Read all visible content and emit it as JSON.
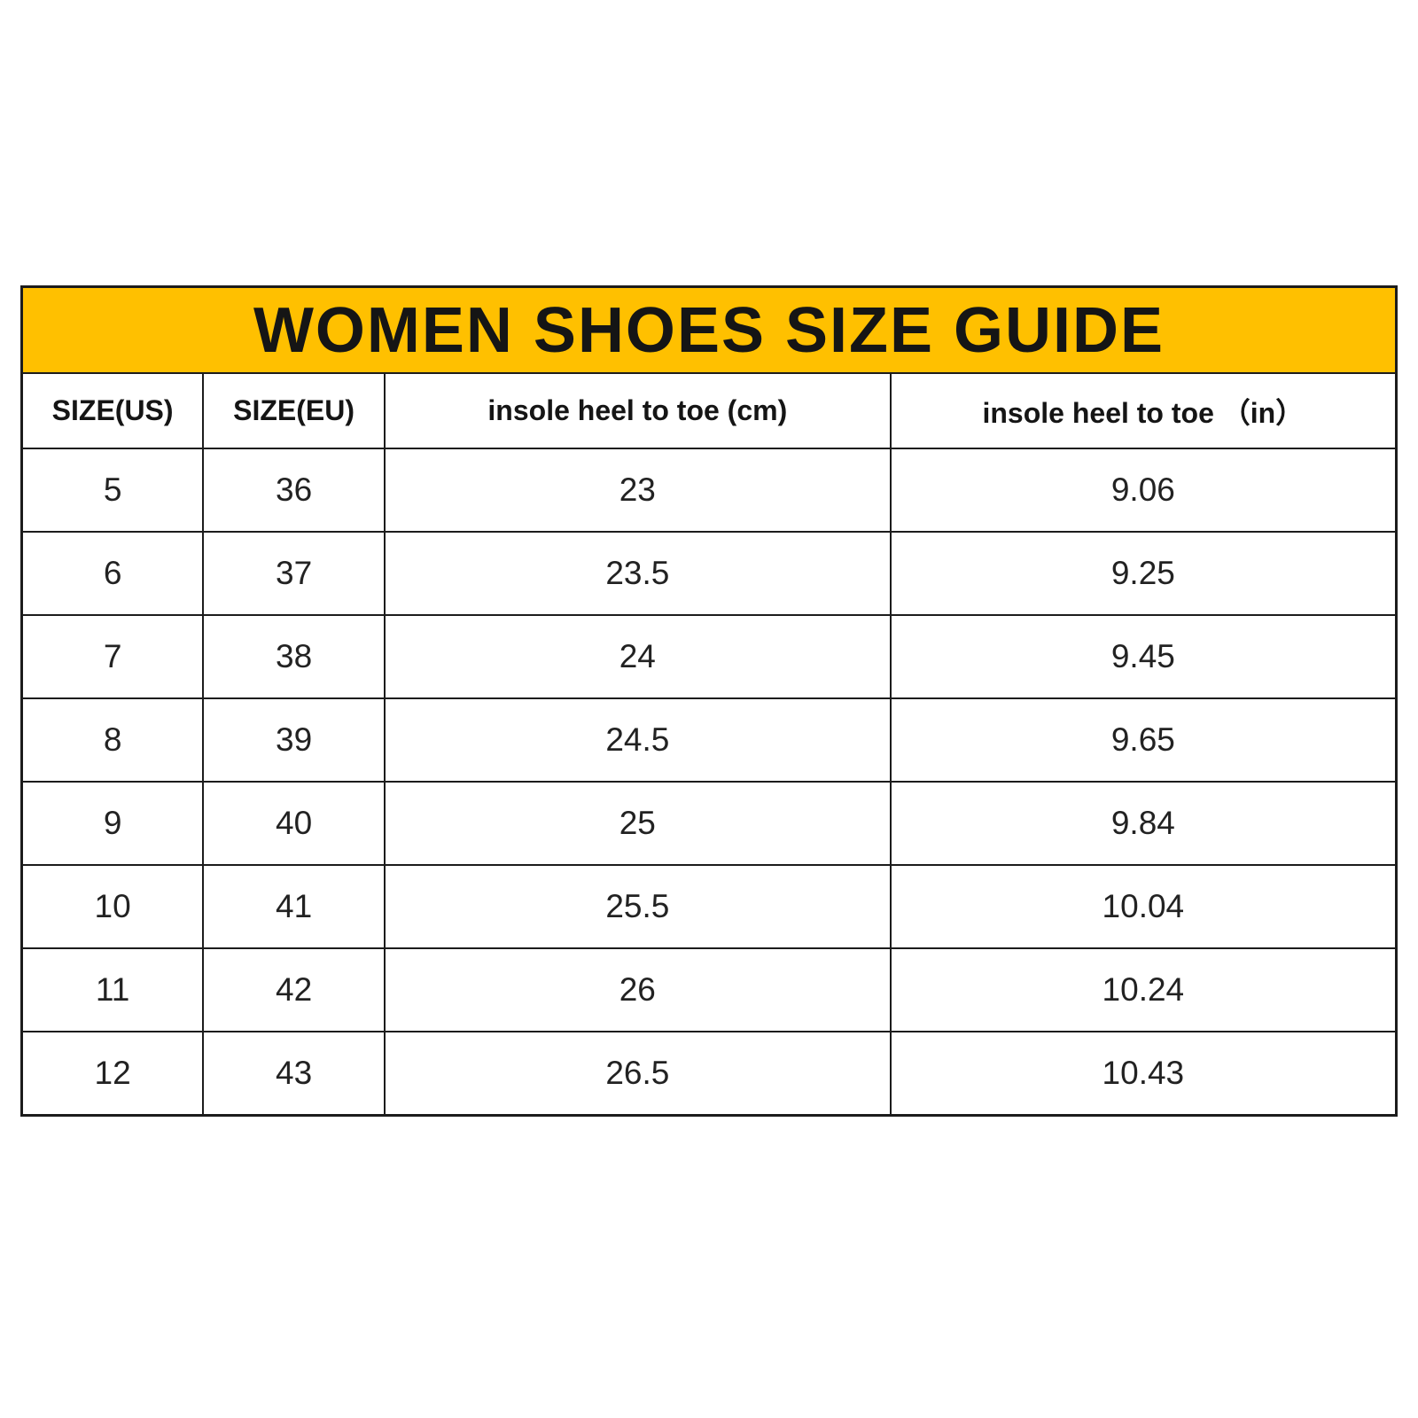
{
  "page": {
    "background_color": "#ffffff"
  },
  "table": {
    "title": "WOMEN SHOES SIZE GUIDE",
    "title_bg_color": "#FFC000",
    "title_text_color": "#151515",
    "border_color": "#1c1c1c",
    "columns": [
      "SIZE(US)",
      "SIZE(EU)",
      "insole heel to toe (cm)",
      "insole heel to toe （in）"
    ],
    "rows": [
      [
        "5",
        "36",
        "23",
        "9.06"
      ],
      [
        "6",
        "37",
        "23.5",
        "9.25"
      ],
      [
        "7",
        "38",
        "24",
        "9.45"
      ],
      [
        "8",
        "39",
        "24.5",
        "9.65"
      ],
      [
        "9",
        "40",
        "25",
        "9.84"
      ],
      [
        "10",
        "41",
        "25.5",
        "10.04"
      ],
      [
        "11",
        "42",
        "26",
        "10.24"
      ],
      [
        "12",
        "43",
        "26.5",
        "10.43"
      ]
    ]
  }
}
